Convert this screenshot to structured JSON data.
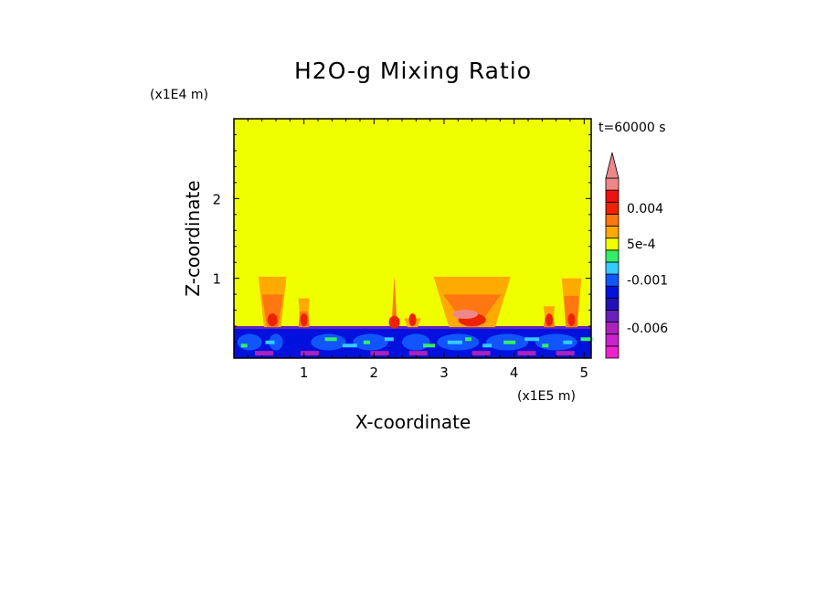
{
  "chart_data": {
    "type": "heatmap",
    "title": "H2O-g Mixing Ratio",
    "xlabel": "X-coordinate",
    "ylabel": "Z-coordinate",
    "x_unit": "(x1E5 m)",
    "y_unit": "(x1E4 m)",
    "time_label": "t=60000 s",
    "xlim": [
      0,
      5.1
    ],
    "ylim": [
      0,
      3.0
    ],
    "x_ticks": [
      1,
      2,
      3,
      4,
      5
    ],
    "y_ticks": [
      1,
      2
    ],
    "background_value_color": "#f0ff00",
    "colorbar": {
      "levels": [
        {
          "label": "",
          "color": "#ee22cc"
        },
        {
          "label": "",
          "color": "#cc22cc"
        },
        {
          "label": "-0.006",
          "color": "#aa22bb"
        },
        {
          "label": "",
          "color": "#6622bb"
        },
        {
          "label": "",
          "color": "#2211bb"
        },
        {
          "label": "",
          "color": "#0011dd"
        },
        {
          "label": "-0.001",
          "color": "#1155ff"
        },
        {
          "label": "",
          "color": "#33ccff"
        },
        {
          "label": "",
          "color": "#33ee66"
        },
        {
          "label": "5e-4",
          "color": "#f0ff00"
        },
        {
          "label": "",
          "color": "#ffaa00"
        },
        {
          "label": "",
          "color": "#ff7711"
        },
        {
          "label": "0.004",
          "color": "#ee2200"
        },
        {
          "label": "",
          "color": "#ee1111"
        },
        {
          "label": "",
          "color": "#ee8888"
        }
      ],
      "extend": "max"
    },
    "features": {
      "boundary_layer_top_z": 0.4,
      "plumes_x": [
        0.5,
        1.0,
        2.3,
        2.55,
        3.4,
        4.5,
        4.8
      ]
    }
  }
}
